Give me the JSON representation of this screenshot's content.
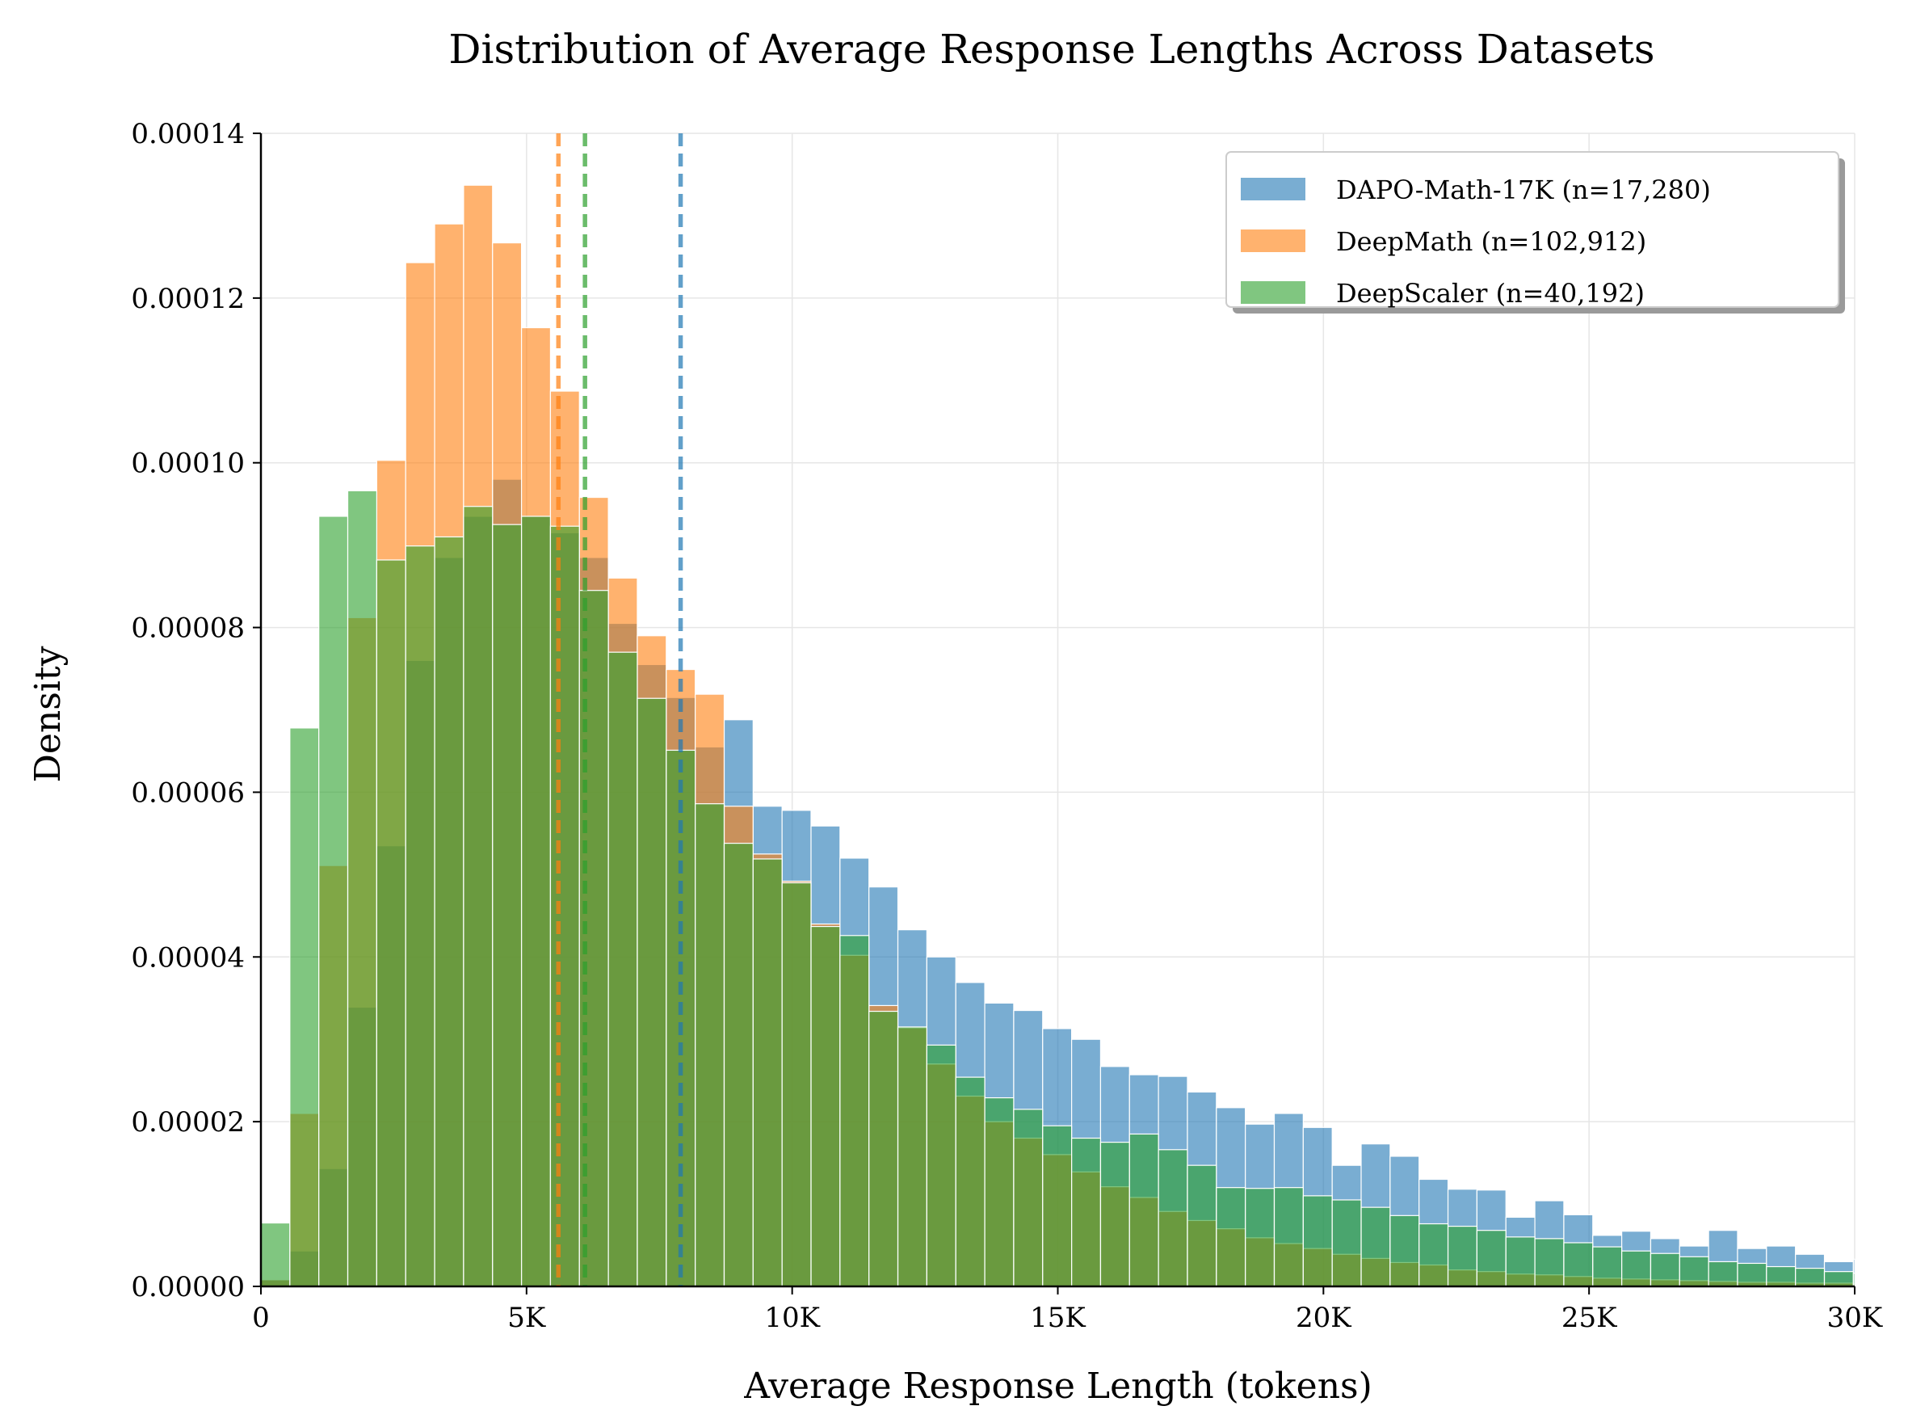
{
  "chart_data": {
    "type": "bar",
    "title": "Distribution of Average Response Lengths Across Datasets",
    "xlabel": "Average Response Length (tokens)",
    "ylabel": "Density",
    "xlim": [
      0,
      30000
    ],
    "ylim": [
      0,
      0.00014
    ],
    "grid": true,
    "legend_position": "top-right",
    "x_ticks": [
      {
        "value": 0,
        "label": "0"
      },
      {
        "value": 5000,
        "label": "5K"
      },
      {
        "value": 10000,
        "label": "10K"
      },
      {
        "value": 15000,
        "label": "15K"
      },
      {
        "value": 20000,
        "label": "20K"
      },
      {
        "value": 25000,
        "label": "25K"
      },
      {
        "value": 30000,
        "label": "30K"
      }
    ],
    "y_ticks": [
      {
        "value": 0,
        "label": "0.00000"
      },
      {
        "value": 2e-05,
        "label": "0.00002"
      },
      {
        "value": 4e-05,
        "label": "0.00004"
      },
      {
        "value": 6e-05,
        "label": "0.00006"
      },
      {
        "value": 8e-05,
        "label": "0.00008"
      },
      {
        "value": 0.0001,
        "label": "0.00010"
      },
      {
        "value": 0.00012,
        "label": "0.00012"
      },
      {
        "value": 0.00014,
        "label": "0.00014"
      }
    ],
    "bin_start": 0,
    "bin_width": 545,
    "series": [
      {
        "name": "DAPO-Math-17K (n=17,280)",
        "color": "#1f77b4",
        "mean": 7900,
        "values": [
          8e-07,
          4.3e-06,
          1.43e-05,
          3.39e-05,
          5.35e-05,
          7.6e-05,
          8.85e-05,
          9.35e-05,
          9.8e-05,
          9.35e-05,
          9.15e-05,
          8.85e-05,
          8.05e-05,
          7.55e-05,
          7.15e-05,
          6.55e-05,
          6.88e-05,
          5.83e-05,
          5.78e-05,
          5.59e-05,
          5.2e-05,
          4.85e-05,
          4.33e-05,
          4e-05,
          3.69e-05,
          3.44e-05,
          3.35e-05,
          3.13e-05,
          3e-05,
          2.67e-05,
          2.57e-05,
          2.55e-05,
          2.36e-05,
          2.17e-05,
          1.97e-05,
          2.1e-05,
          1.93e-05,
          1.47e-05,
          1.73e-05,
          1.58e-05,
          1.3e-05,
          1.18e-05,
          1.17e-05,
          8.4e-06,
          1.04e-05,
          8.7e-06,
          6.2e-06,
          6.7e-06,
          5.8e-06,
          4.9e-06,
          6.8e-06,
          4.6e-06,
          4.9e-06,
          3.9e-06,
          3e-06,
          3.3e-06,
          3.2e-06
        ]
      },
      {
        "name": "DeepMath (n=102,912)",
        "color": "#ff7f0e",
        "mean": 5600,
        "values": [
          8e-07,
          2.1e-05,
          5.11e-05,
          8.12e-05,
          0.0001003,
          0.0001243,
          0.000129,
          0.0001337,
          0.0001267,
          0.0001164,
          0.0001087,
          9.58e-05,
          8.6e-05,
          7.9e-05,
          7.49e-05,
          7.19e-05,
          5.83e-05,
          5.25e-05,
          4.92e-05,
          4.4e-05,
          4.02e-05,
          3.41e-05,
          3.14e-05,
          2.7e-05,
          2.31e-05,
          2e-05,
          1.8e-05,
          1.6e-05,
          1.39e-05,
          1.21e-05,
          1.08e-05,
          9.1e-06,
          8e-06,
          7e-06,
          5.9e-06,
          5.2e-06,
          4.6e-06,
          3.9e-06,
          3.4e-06,
          2.9e-06,
          2.6e-06,
          2e-06,
          1.8e-06,
          1.5e-06,
          1.4e-06,
          1.2e-06,
          1e-06,
          9e-07,
          8e-07,
          7e-07,
          6e-07,
          5e-07,
          5e-07,
          4e-07,
          4e-07,
          3e-07,
          3e-07
        ]
      },
      {
        "name": "DeepScaler (n=40,192)",
        "color": "#2ca02c",
        "mean": 6100,
        "values": [
          7.7e-06,
          6.78e-05,
          9.35e-05,
          9.66e-05,
          8.82e-05,
          8.99e-05,
          9.1e-05,
          9.47e-05,
          9.25e-05,
          9.35e-05,
          9.23e-05,
          8.45e-05,
          7.7e-05,
          7.14e-05,
          6.51e-05,
          5.86e-05,
          5.38e-05,
          5.19e-05,
          4.9e-05,
          4.37e-05,
          4.26e-05,
          3.34e-05,
          3.15e-05,
          2.93e-05,
          2.54e-05,
          2.29e-05,
          2.15e-05,
          1.95e-05,
          1.8e-05,
          1.75e-05,
          1.85e-05,
          1.66e-05,
          1.47e-05,
          1.2e-05,
          1.19e-05,
          1.2e-05,
          1.1e-05,
          1.05e-05,
          9.6e-06,
          8.6e-06,
          7.6e-06,
          7.3e-06,
          6.8e-06,
          6e-06,
          5.8e-06,
          5.3e-06,
          4.8e-06,
          4.3e-06,
          4e-06,
          3.6e-06,
          3e-06,
          2.8e-06,
          2.4e-06,
          2.2e-06,
          1.8e-06,
          1.6e-06,
          1.4e-06
        ]
      }
    ]
  }
}
